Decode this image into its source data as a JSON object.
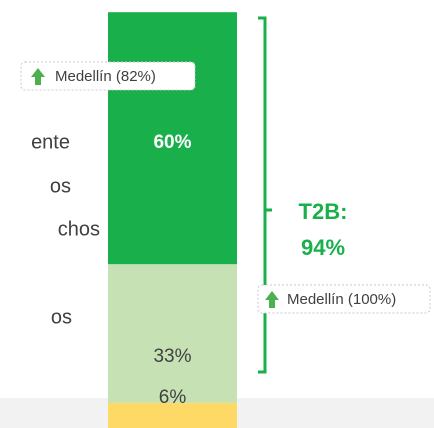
{
  "chart_data": {
    "type": "stacked_bar",
    "values": [
      60,
      33,
      6
    ],
    "value_labels": [
      "60%",
      "33%",
      "6%"
    ],
    "colors": [
      "#19b04b",
      "#c6e2b4",
      "#ffd966"
    ],
    "label_colors": [
      "#ffffff",
      "#404040",
      "#404040"
    ],
    "side_text": [
      "ente",
      "os",
      "chos",
      "os"
    ],
    "annotations": [
      "Medellín (82%)",
      "Medellín (100%)"
    ],
    "bracket_label": [
      "T2B:",
      "94%"
    ]
  }
}
